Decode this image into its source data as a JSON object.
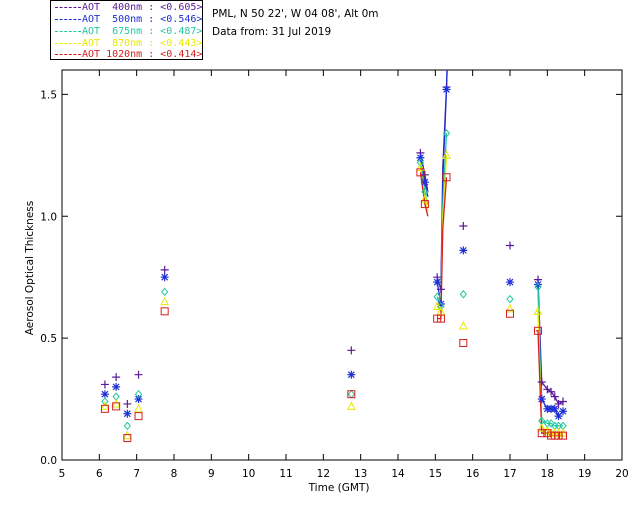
{
  "legend": [
    {
      "name": "AOT  400nm : <0.605>",
      "color": "#5a1a9a"
    },
    {
      "name": "AOT  500nm : <0.546>",
      "color": "#1d2fd6"
    },
    {
      "name": "AOT  675nm : <0.487>",
      "color": "#23c8a0"
    },
    {
      "name": "AOT  870nm : <0.443>",
      "color": "#e8e800"
    },
    {
      "name": "AOT 1020nm : <0.414>",
      "color": "#d81e1e"
    }
  ],
  "info": {
    "site": "PML, N 50 22', W 04 08', Alt 0m",
    "date": "Data from: 31 Jul 2019"
  },
  "chart_data": {
    "type": "scatter",
    "title": "",
    "xlabel": "Time (GMT)",
    "ylabel": "Aerosol Optical Thickness",
    "xlim": [
      5,
      20
    ],
    "ylim": [
      0.0,
      1.6
    ],
    "xticks": [
      5,
      6,
      7,
      8,
      9,
      10,
      11,
      12,
      13,
      14,
      15,
      16,
      17,
      18,
      19,
      20
    ],
    "yticks": [
      0.0,
      0.5,
      1.0,
      1.5
    ],
    "ytick_labels": [
      "0.0",
      "0.5",
      "1.0",
      "1.5"
    ],
    "series": [
      {
        "name": "AOT 400nm",
        "marker": "plus",
        "color": "#5a1a9a",
        "x": [
          6.15,
          6.45,
          6.75,
          7.05,
          7.75,
          12.75,
          14.6,
          14.72,
          15.05,
          15.15,
          15.3,
          15.75,
          17.0,
          17.75,
          17.85,
          18.0,
          18.1,
          18.2,
          18.3,
          18.42
        ],
        "y": [
          0.31,
          0.34,
          0.23,
          0.35,
          0.78,
          0.45,
          1.26,
          1.17,
          0.75,
          0.7,
          1.53,
          0.96,
          0.88,
          0.74,
          0.32,
          0.29,
          0.28,
          0.26,
          0.23,
          0.24
        ]
      },
      {
        "name": "AOT 500nm",
        "marker": "star",
        "color": "#1d2fd6",
        "x": [
          6.15,
          6.45,
          6.75,
          7.05,
          7.75,
          12.75,
          14.6,
          14.72,
          15.05,
          15.15,
          15.3,
          15.75,
          17.0,
          17.75,
          17.85,
          18.0,
          18.1,
          18.2,
          18.3,
          18.42
        ],
        "y": [
          0.27,
          0.3,
          0.19,
          0.25,
          0.75,
          0.35,
          1.24,
          1.14,
          0.73,
          0.64,
          1.52,
          0.86,
          0.73,
          0.72,
          0.25,
          0.21,
          0.21,
          0.21,
          0.18,
          0.2
        ]
      },
      {
        "name": "AOT 675nm",
        "marker": "diamond",
        "color": "#23c8a0",
        "x": [
          6.15,
          6.45,
          6.75,
          7.05,
          7.75,
          12.75,
          14.6,
          14.72,
          15.05,
          15.15,
          15.3,
          15.75,
          17.0,
          17.75,
          17.85,
          18.0,
          18.1,
          18.2,
          18.3,
          18.42
        ],
        "y": [
          0.24,
          0.26,
          0.14,
          0.27,
          0.69,
          0.27,
          1.22,
          1.1,
          0.67,
          0.63,
          1.34,
          0.68,
          0.66,
          0.71,
          0.16,
          0.15,
          0.15,
          0.14,
          0.14,
          0.14
        ]
      },
      {
        "name": "AOT 870nm",
        "marker": "triangle",
        "color": "#e8e800",
        "x": [
          6.15,
          6.45,
          6.75,
          7.05,
          7.75,
          12.75,
          14.6,
          14.72,
          15.05,
          15.15,
          15.3,
          15.75,
          17.0,
          17.75,
          17.85,
          18.0,
          18.1,
          18.2,
          18.3,
          18.42
        ],
        "y": [
          0.22,
          0.23,
          0.1,
          0.21,
          0.65,
          0.22,
          1.2,
          1.07,
          0.63,
          0.61,
          1.25,
          0.55,
          0.62,
          0.61,
          0.13,
          0.12,
          0.11,
          0.11,
          0.11,
          0.11
        ]
      },
      {
        "name": "AOT 1020nm",
        "marker": "square",
        "color": "#d81e1e",
        "x": [
          6.15,
          6.45,
          6.75,
          7.05,
          7.75,
          12.75,
          14.6,
          14.72,
          15.05,
          15.15,
          15.3,
          15.75,
          17.0,
          17.75,
          17.85,
          18.0,
          18.1,
          18.2,
          18.3,
          18.42
        ],
        "y": [
          0.21,
          0.22,
          0.09,
          0.18,
          0.61,
          0.27,
          1.18,
          1.05,
          0.58,
          0.58,
          1.16,
          0.48,
          0.6,
          0.53,
          0.11,
          0.11,
          0.1,
          0.1,
          0.1,
          0.1
        ]
      }
    ],
    "lines": [
      {
        "color": "#5a1a9a",
        "segments": [
          [
            [
              14.6,
              1.26
            ],
            [
              14.72,
              1.17
            ],
            [
              14.8,
              1.1
            ]
          ],
          [
            [
              15.05,
              0.75
            ],
            [
              15.15,
              0.7
            ],
            [
              15.2,
              1.2
            ],
            [
              15.3,
              1.53
            ],
            [
              15.35,
              1.75
            ]
          ],
          [
            [
              17.7,
              0.74
            ],
            [
              17.75,
              0.74
            ],
            [
              17.85,
              0.32
            ],
            [
              18.0,
              0.29
            ],
            [
              18.1,
              0.28
            ],
            [
              18.2,
              0.26
            ],
            [
              18.3,
              0.23
            ],
            [
              18.42,
              0.24
            ]
          ]
        ]
      },
      {
        "color": "#1d2fd6",
        "segments": [
          [
            [
              14.6,
              1.24
            ],
            [
              14.72,
              1.14
            ],
            [
              14.8,
              1.08
            ]
          ],
          [
            [
              15.05,
              0.73
            ],
            [
              15.15,
              0.64
            ],
            [
              15.2,
              1.15
            ],
            [
              15.3,
              1.52
            ],
            [
              15.33,
              1.7
            ]
          ],
          [
            [
              17.7,
              0.72
            ],
            [
              17.75,
              0.72
            ],
            [
              17.85,
              0.25
            ],
            [
              18.0,
              0.21
            ],
            [
              18.1,
              0.21
            ],
            [
              18.2,
              0.21
            ],
            [
              18.3,
              0.18
            ],
            [
              18.42,
              0.2
            ]
          ]
        ]
      },
      {
        "color": "#23c8a0",
        "segments": [
          [
            [
              14.6,
              1.22
            ],
            [
              14.72,
              1.1
            ],
            [
              14.8,
              1.05
            ]
          ],
          [
            [
              15.05,
              0.67
            ],
            [
              15.15,
              0.63
            ],
            [
              15.2,
              1.05
            ],
            [
              15.3,
              1.34
            ]
          ],
          [
            [
              17.7,
              0.71
            ],
            [
              17.75,
              0.71
            ],
            [
              17.85,
              0.16
            ],
            [
              18.0,
              0.15
            ],
            [
              18.1,
              0.15
            ],
            [
              18.2,
              0.14
            ],
            [
              18.3,
              0.14
            ],
            [
              18.42,
              0.14
            ]
          ]
        ]
      },
      {
        "color": "#e8e800",
        "segments": [
          [
            [
              14.6,
              1.2
            ],
            [
              14.72,
              1.07
            ],
            [
              14.8,
              1.02
            ]
          ],
          [
            [
              15.05,
              0.63
            ],
            [
              15.15,
              0.61
            ],
            [
              15.2,
              1.0
            ],
            [
              15.3,
              1.25
            ]
          ],
          [
            [
              17.7,
              0.61
            ],
            [
              17.75,
              0.61
            ],
            [
              17.85,
              0.13
            ],
            [
              18.0,
              0.12
            ],
            [
              18.1,
              0.11
            ],
            [
              18.2,
              0.11
            ],
            [
              18.3,
              0.11
            ],
            [
              18.42,
              0.11
            ]
          ]
        ]
      },
      {
        "color": "#d81e1e",
        "segments": [
          [
            [
              14.6,
              1.18
            ],
            [
              14.72,
              1.05
            ],
            [
              14.8,
              1.0
            ]
          ],
          [
            [
              15.05,
              0.58
            ],
            [
              15.15,
              0.58
            ],
            [
              15.2,
              0.95
            ],
            [
              15.3,
              1.16
            ]
          ],
          [
            [
              17.7,
              0.53
            ],
            [
              17.75,
              0.53
            ],
            [
              17.85,
              0.11
            ],
            [
              18.0,
              0.11
            ],
            [
              18.1,
              0.1
            ],
            [
              18.2,
              0.1
            ],
            [
              18.3,
              0.1
            ],
            [
              18.42,
              0.1
            ]
          ]
        ]
      }
    ]
  }
}
